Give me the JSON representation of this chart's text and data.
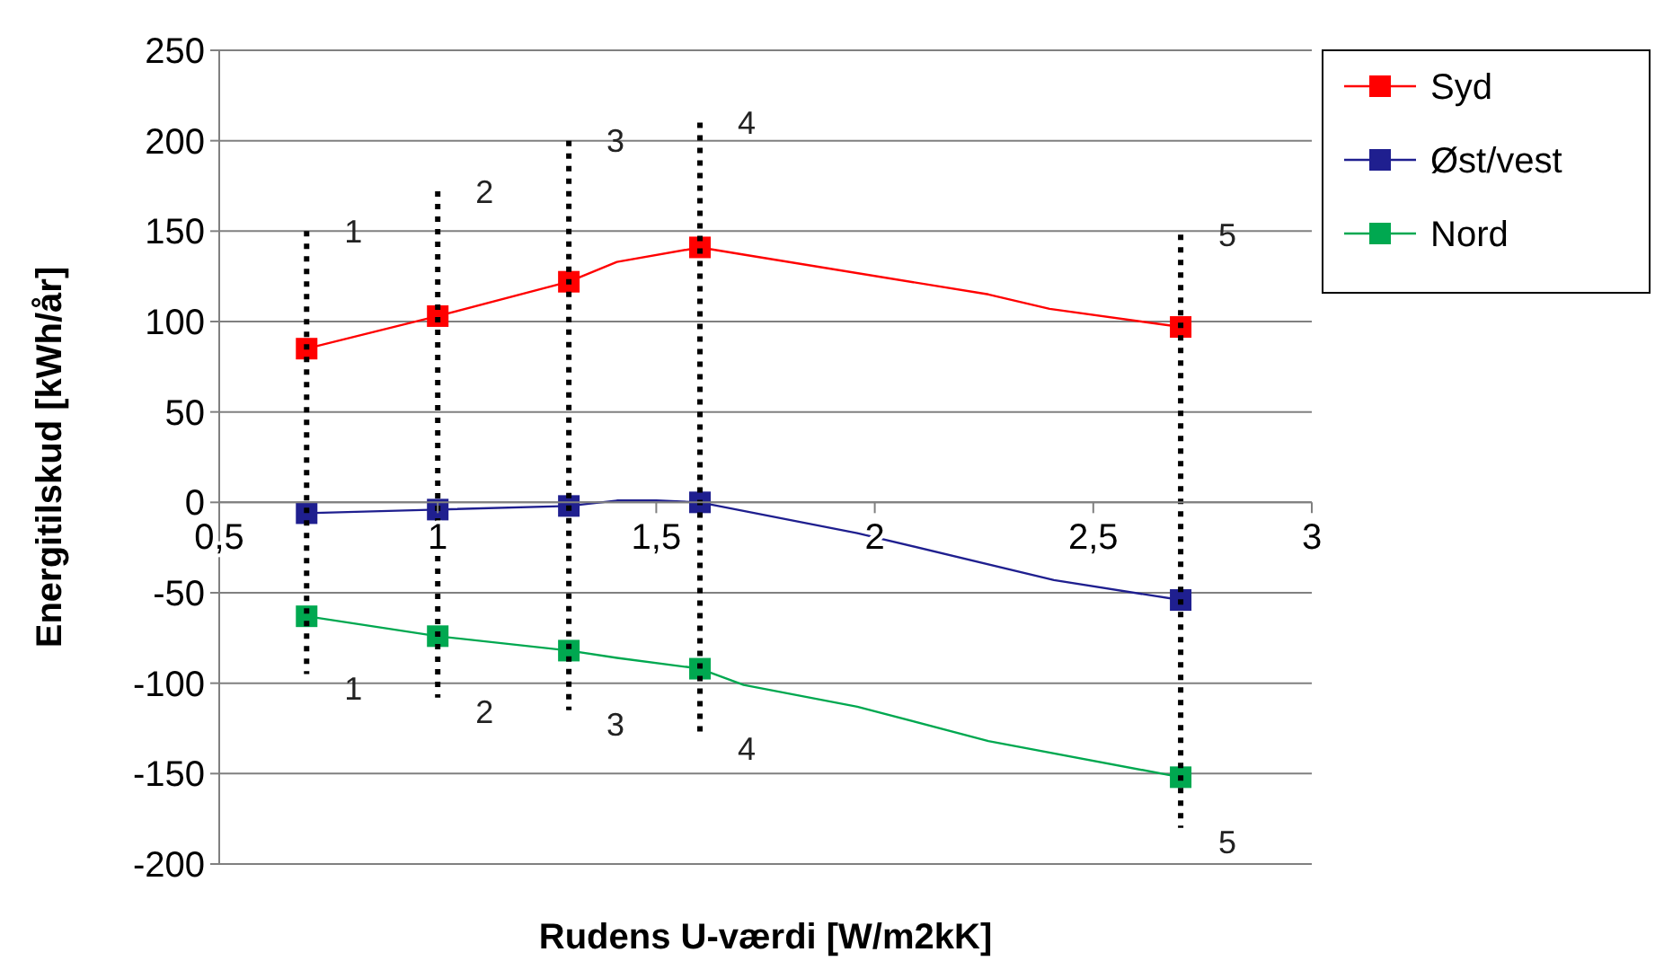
{
  "chart_data": {
    "type": "line",
    "xlabel": "Rudens U-værdi [W/m2kK]",
    "ylabel": "Energitilskud [kWh/år]",
    "xlim": [
      0.5,
      3
    ],
    "xticks": [
      {
        "value": 0.5,
        "label": "0,5"
      },
      1,
      {
        "value": 1.5,
        "label": "1,5"
      },
      2,
      {
        "value": 2.5,
        "label": "2,5"
      },
      3
    ],
    "ylim": [
      -200,
      250
    ],
    "yticks": [
      -200,
      -150,
      -100,
      -50,
      0,
      50,
      100,
      150,
      200,
      250
    ],
    "grid": "y",
    "legend": "top right",
    "series": [
      {
        "color": "#ff0000",
        "marker": "none",
        "x": [
          0.7,
          1,
          1.3,
          1.41,
          1.6,
          1.7,
          2.26,
          2.4,
          2.7
        ],
        "values": [
          85,
          103,
          122,
          133,
          141,
          137,
          115,
          107,
          97
        ]
      },
      {
        "color": "#1f1f8f",
        "marker": "none",
        "x": [
          0.7,
          1,
          1.3,
          1.41,
          1.5,
          1.6,
          1.96,
          2.41,
          2.7
        ],
        "values": [
          -6,
          -4,
          -2,
          1,
          1,
          0,
          -17,
          -43,
          -54
        ]
      },
      {
        "color": "#00a850",
        "marker": "none",
        "x": [
          0.7,
          1,
          1.3,
          1.41,
          1.6,
          1.7,
          1.96,
          2.26,
          2.7
        ],
        "values": [
          -63,
          -74,
          -82,
          -86,
          -92,
          -101,
          -113,
          -132,
          -152
        ]
      },
      {
        "type": "scatter",
        "name": "Syd",
        "color": "#ff0000",
        "marker": "square",
        "x": [
          0.7,
          1,
          1.3,
          1.6,
          2.7
        ],
        "values": [
          85,
          103,
          122,
          141,
          97
        ]
      },
      {
        "type": "scatter",
        "name": "Øst/vest",
        "color": "#1f1f8f",
        "marker": "square",
        "x": [
          0.7,
          1,
          1.3,
          1.6,
          2.7
        ],
        "values": [
          -6,
          -4,
          -2,
          0,
          -54
        ]
      },
      {
        "type": "scatter",
        "name": "Nord",
        "color": "#00a850",
        "marker": "square",
        "x": [
          0.7,
          1,
          1.3,
          1.6,
          2.7
        ],
        "values": [
          -63,
          -74,
          -82,
          -92,
          -152
        ]
      },
      {
        "color": "#000000",
        "marker": "none",
        "line_style": "dotted",
        "x": [
          0.7,
          0.7
        ],
        "values": [
          150,
          -95
        ]
      },
      {
        "color": "#000000",
        "marker": "none",
        "line_style": "dotted",
        "x": [
          1,
          1
        ],
        "values": [
          172,
          -108
        ]
      },
      {
        "color": "#000000",
        "marker": "none",
        "line_style": "dotted",
        "x": [
          1.3,
          1.3
        ],
        "values": [
          200,
          -115
        ]
      },
      {
        "color": "#000000",
        "marker": "none",
        "line_style": "dotted",
        "x": [
          1.6,
          1.6
        ],
        "values": [
          210,
          -128
        ]
      },
      {
        "color": "#000000",
        "marker": "none",
        "line_style": "dotted",
        "x": [
          2.7,
          2.7
        ],
        "values": [
          148,
          -180
        ]
      }
    ],
    "annotations": [
      {
        "text": "1",
        "x": 0.7,
        "y": 150
      },
      {
        "text": "2",
        "x": 1,
        "y": 172
      },
      {
        "text": "3",
        "x": 1.3,
        "y": 200
      },
      {
        "text": "4",
        "x": 1.6,
        "y": 210
      },
      {
        "text": "5",
        "x": 2.7,
        "y": 148
      },
      {
        "text": "1",
        "x": 0.7,
        "y": -95
      },
      {
        "text": "2",
        "x": 1,
        "y": -108
      },
      {
        "text": "3",
        "x": 1.3,
        "y": -115
      },
      {
        "text": "4",
        "x": 1.6,
        "y": -128
      },
      {
        "text": "5",
        "x": 2.7,
        "y": -180
      }
    ]
  }
}
